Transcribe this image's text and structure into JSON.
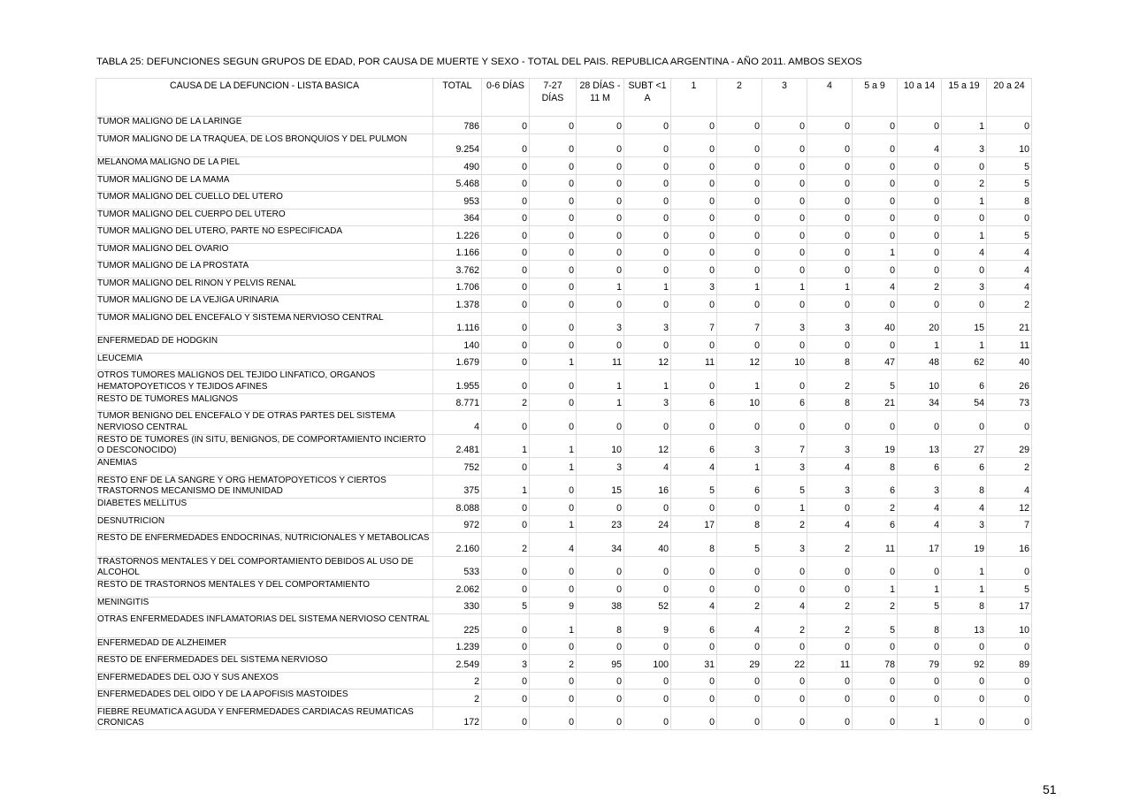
{
  "title": "TABLA 25: DEFUNCIONES SEGUN GRUPOS DE EDAD, POR CAUSA DE MUERTE Y SEXO - TOTAL DEL PAIS. REPUBLICA ARGENTINA - AÑO 2011. AMBOS SEXOS",
  "columns": [
    "CAUSA DE LA DEFUNCION - LISTA BASICA",
    "TOTAL",
    "0-6 DÍAS",
    "7-27 DÍAS",
    "28 DÍAS - 11 M",
    "SUBT <1 A",
    "1",
    "2",
    "3",
    "4",
    "5 a 9",
    "10 a 14",
    "15 a 19",
    "20 a 24"
  ],
  "rows": [
    {
      "cause": "TUMOR MALIGNO DE LA LARINGE",
      "values": [
        "786",
        "0",
        "0",
        "0",
        "0",
        "0",
        "0",
        "0",
        "0",
        "0",
        "0",
        "1",
        "0"
      ]
    },
    {
      "cause": "TUMOR MALIGNO DE LA TRAQUEA,  DE LOS BRONQUIOS Y DEL PULMON",
      "values": [
        "9.254",
        "0",
        "0",
        "0",
        "0",
        "0",
        "0",
        "0",
        "0",
        "0",
        "4",
        "3",
        "10"
      ]
    },
    {
      "cause": "MELANOMA MALIGNO DE LA PIEL",
      "values": [
        "490",
        "0",
        "0",
        "0",
        "0",
        "0",
        "0",
        "0",
        "0",
        "0",
        "0",
        "0",
        "5"
      ]
    },
    {
      "cause": "TUMOR MALIGNO DE LA MAMA",
      "values": [
        "5.468",
        "0",
        "0",
        "0",
        "0",
        "0",
        "0",
        "0",
        "0",
        "0",
        "0",
        "2",
        "5"
      ]
    },
    {
      "cause": "TUMOR MALIGNO DEL CUELLO DEL UTERO",
      "values": [
        "953",
        "0",
        "0",
        "0",
        "0",
        "0",
        "0",
        "0",
        "0",
        "0",
        "0",
        "1",
        "8"
      ]
    },
    {
      "cause": "TUMOR MALIGNO DEL CUERPO DEL UTERO",
      "values": [
        "364",
        "0",
        "0",
        "0",
        "0",
        "0",
        "0",
        "0",
        "0",
        "0",
        "0",
        "0",
        "0"
      ]
    },
    {
      "cause": "TUMOR MALIGNO DEL UTERO, PARTE NO ESPECIFICADA",
      "values": [
        "1.226",
        "0",
        "0",
        "0",
        "0",
        "0",
        "0",
        "0",
        "0",
        "0",
        "0",
        "1",
        "5"
      ]
    },
    {
      "cause": "TUMOR MALIGNO DEL OVARIO",
      "values": [
        "1.166",
        "0",
        "0",
        "0",
        "0",
        "0",
        "0",
        "0",
        "0",
        "1",
        "0",
        "4",
        "4"
      ]
    },
    {
      "cause": "TUMOR MALIGNO DE LA PROSTATA",
      "values": [
        "3.762",
        "0",
        "0",
        "0",
        "0",
        "0",
        "0",
        "0",
        "0",
        "0",
        "0",
        "0",
        "4"
      ]
    },
    {
      "cause": "TUMOR MALIGNO DEL RIÑON Y PELVIS RENAL",
      "values": [
        "1.706",
        "0",
        "0",
        "1",
        "1",
        "3",
        "1",
        "1",
        "1",
        "4",
        "2",
        "3",
        "4"
      ]
    },
    {
      "cause": "TUMOR MALIGNO DE LA VEJIGA URINARIA",
      "values": [
        "1.378",
        "0",
        "0",
        "0",
        "0",
        "0",
        "0",
        "0",
        "0",
        "0",
        "0",
        "0",
        "2"
      ]
    },
    {
      "cause": "TUMOR MALIGNO DEL ENCEFALO Y SISTEMA NERVIOSO CENTRAL",
      "values": [
        "1.116",
        "0",
        "0",
        "3",
        "3",
        "7",
        "7",
        "3",
        "3",
        "40",
        "20",
        "15",
        "21"
      ]
    },
    {
      "cause": "ENFERMEDAD DE HODGKIN",
      "values": [
        "140",
        "0",
        "0",
        "0",
        "0",
        "0",
        "0",
        "0",
        "0",
        "0",
        "1",
        "1",
        "11"
      ]
    },
    {
      "cause": "LEUCEMIA",
      "values": [
        "1.679",
        "0",
        "1",
        "11",
        "12",
        "11",
        "12",
        "10",
        "8",
        "47",
        "48",
        "62",
        "40"
      ]
    },
    {
      "cause": "OTROS TUMORES MALIGNOS DEL TEJIDO LINFATICO, ORGANOS HEMATOPOYETICOS Y TEJIDOS AFINES",
      "values": [
        "1.955",
        "0",
        "0",
        "1",
        "1",
        "0",
        "1",
        "0",
        "2",
        "5",
        "10",
        "6",
        "26"
      ]
    },
    {
      "cause": "RESTO DE TUMORES MALIGNOS",
      "values": [
        "8.771",
        "2",
        "0",
        "1",
        "3",
        "6",
        "10",
        "6",
        "8",
        "21",
        "34",
        "54",
        "73"
      ]
    },
    {
      "cause": "TUMOR BENIGNO DEL ENCEFALO Y DE OTRAS PARTES DEL SISTEMA NERVIOSO CENTRAL",
      "values": [
        "4",
        "0",
        "0",
        "0",
        "0",
        "0",
        "0",
        "0",
        "0",
        "0",
        "0",
        "0",
        "0"
      ]
    },
    {
      "cause": "RESTO DE TUMORES (IN SITU, BENIGNOS, DE COMPORTAMIENTO INCIERTO O DESCONOCIDO)",
      "values": [
        "2.481",
        "1",
        "1",
        "10",
        "12",
        "6",
        "3",
        "7",
        "3",
        "19",
        "13",
        "27",
        "29"
      ]
    },
    {
      "cause": "ANEMIAS",
      "values": [
        "752",
        "0",
        "1",
        "3",
        "4",
        "4",
        "1",
        "3",
        "4",
        "8",
        "6",
        "6",
        "2"
      ]
    },
    {
      "cause": "RESTO ENF DE LA SANGRE Y ORG HEMATOPOYETICOS Y CIERTOS TRASTORNOS MECANISMO DE  INMUNIDAD",
      "values": [
        "375",
        "1",
        "0",
        "15",
        "16",
        "5",
        "6",
        "5",
        "3",
        "6",
        "3",
        "8",
        "4"
      ]
    },
    {
      "cause": "DIABETES MELLITUS",
      "values": [
        "8.088",
        "0",
        "0",
        "0",
        "0",
        "0",
        "0",
        "1",
        "0",
        "2",
        "4",
        "4",
        "12"
      ]
    },
    {
      "cause": "DESNUTRICION",
      "values": [
        "972",
        "0",
        "1",
        "23",
        "24",
        "17",
        "8",
        "2",
        "4",
        "6",
        "4",
        "3",
        "7"
      ]
    },
    {
      "cause": "RESTO DE ENFERMEDADES ENDOCRINAS, NUTRICIONALES Y METABOLICAS",
      "values": [
        "2.160",
        "2",
        "4",
        "34",
        "40",
        "8",
        "5",
        "3",
        "2",
        "11",
        "17",
        "19",
        "16"
      ]
    },
    {
      "cause": "TRASTORNOS MENTALES Y DEL COMPORTAMIENTO DEBIDOS AL USO DE ALCOHOL",
      "values": [
        "533",
        "0",
        "0",
        "0",
        "0",
        "0",
        "0",
        "0",
        "0",
        "0",
        "0",
        "1",
        "0"
      ]
    },
    {
      "cause": "RESTO DE TRASTORNOS MENTALES Y DEL COMPORTAMIENTO",
      "values": [
        "2.062",
        "0",
        "0",
        "0",
        "0",
        "0",
        "0",
        "0",
        "0",
        "1",
        "1",
        "1",
        "5"
      ]
    },
    {
      "cause": "MENINGITIS",
      "values": [
        "330",
        "5",
        "9",
        "38",
        "52",
        "4",
        "2",
        "4",
        "2",
        "2",
        "5",
        "8",
        "17"
      ]
    },
    {
      "cause": "OTRAS ENFERMEDADES INFLAMATORIAS DEL SISTEMA NERVIOSO CENTRAL",
      "values": [
        "225",
        "0",
        "1",
        "8",
        "9",
        "6",
        "4",
        "2",
        "2",
        "5",
        "8",
        "13",
        "10"
      ]
    },
    {
      "cause": "ENFERMEDAD DE ALZHEIMER",
      "values": [
        "1.239",
        "0",
        "0",
        "0",
        "0",
        "0",
        "0",
        "0",
        "0",
        "0",
        "0",
        "0",
        "0"
      ]
    },
    {
      "cause": "RESTO DE ENFERMEDADES DEL SISTEMA NERVIOSO",
      "values": [
        "2.549",
        "3",
        "2",
        "95",
        "100",
        "31",
        "29",
        "22",
        "11",
        "78",
        "79",
        "92",
        "89"
      ]
    },
    {
      "cause": "ENFERMEDADES DEL OJO Y SUS ANEXOS",
      "values": [
        "2",
        "0",
        "0",
        "0",
        "0",
        "0",
        "0",
        "0",
        "0",
        "0",
        "0",
        "0",
        "0"
      ]
    },
    {
      "cause": "ENFERMEDADES DEL OIDO Y DE LA APOFISIS MASTOIDES",
      "values": [
        "2",
        "0",
        "0",
        "0",
        "0",
        "0",
        "0",
        "0",
        "0",
        "0",
        "0",
        "0",
        "0"
      ]
    },
    {
      "cause": "FIEBRE REUMATICA AGUDA Y ENFERMEDADES CARDIACAS REUMATICAS CRONICAS",
      "values": [
        "172",
        "0",
        "0",
        "0",
        "0",
        "0",
        "0",
        "0",
        "0",
        "0",
        "1",
        "0",
        "0"
      ]
    }
  ],
  "page_number": "51"
}
